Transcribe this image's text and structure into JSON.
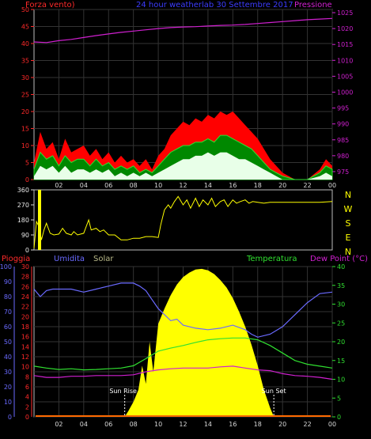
{
  "header": {
    "left_title": "Forza vento)",
    "center_title": "24 hour weatherlab  30 Settembre 2017",
    "right_title": "Pressione"
  },
  "colors": {
    "background": "#000000",
    "frame": "#bcbcbc",
    "grid": "#333333",
    "wind_axis": "#ff2a2a",
    "pressure_axis": "#d020d0",
    "pressure_line": "#d020d0",
    "gust": "#ff0000",
    "avg": "#30e030",
    "min": "#e8ffe8",
    "direction": "#ffff00",
    "compass": "#ffff00",
    "pioggia": "#ff2a2a",
    "umidita": "#6a6aff",
    "solar": "#b8b888",
    "temperatura": "#30e030",
    "dewpoint": "#d020d0",
    "solar_fill": "#ffff00"
  },
  "time_ticks": [
    "02",
    "04",
    "06",
    "08",
    "10",
    "12",
    "14",
    "16",
    "18",
    "20",
    "22",
    "00"
  ],
  "wind_chart": {
    "left_ticks": [
      "0",
      "5",
      "10",
      "15",
      "20",
      "25",
      "30",
      "35",
      "40",
      "45",
      "50"
    ],
    "right_ticks": [
      "975",
      "980",
      "985",
      "990",
      "995",
      "1000",
      "1005",
      "1010",
      "1015",
      "1020",
      "1025"
    ],
    "wind_range": [
      0,
      50
    ],
    "pressure_range": [
      972.5,
      1026
    ],
    "pressure_series": [
      [
        0,
        1015.8
      ],
      [
        1,
        1015.6
      ],
      [
        2,
        1016.2
      ],
      [
        3,
        1016.6
      ],
      [
        4,
        1017.2
      ],
      [
        5,
        1017.8
      ],
      [
        6,
        1018.3
      ],
      [
        7,
        1018.8
      ],
      [
        8,
        1019.2
      ],
      [
        9,
        1019.6
      ],
      [
        10,
        1020.0
      ],
      [
        11,
        1020.3
      ],
      [
        12,
        1020.5
      ],
      [
        13,
        1020.6
      ],
      [
        14,
        1020.8
      ],
      [
        15,
        1021.0
      ],
      [
        16,
        1021.1
      ],
      [
        17,
        1021.3
      ],
      [
        18,
        1021.6
      ],
      [
        19,
        1021.9
      ],
      [
        20,
        1022.2
      ],
      [
        21,
        1022.5
      ],
      [
        22,
        1022.8
      ],
      [
        23,
        1023.0
      ],
      [
        24,
        1023.2
      ]
    ],
    "gust_series": [
      [
        0,
        5
      ],
      [
        0.5,
        14
      ],
      [
        1,
        9
      ],
      [
        1.5,
        11
      ],
      [
        2,
        6
      ],
      [
        2.5,
        12
      ],
      [
        3,
        8
      ],
      [
        3.5,
        9
      ],
      [
        4,
        10
      ],
      [
        4.5,
        7
      ],
      [
        5,
        9
      ],
      [
        5.5,
        6
      ],
      [
        6,
        8
      ],
      [
        6.5,
        5
      ],
      [
        7,
        7
      ],
      [
        7.5,
        5
      ],
      [
        8,
        6
      ],
      [
        8.5,
        4
      ],
      [
        9,
        6
      ],
      [
        9.5,
        3
      ],
      [
        10,
        7
      ],
      [
        10.5,
        9
      ],
      [
        11,
        13
      ],
      [
        11.5,
        15
      ],
      [
        12,
        17
      ],
      [
        12.5,
        16
      ],
      [
        13,
        18
      ],
      [
        13.5,
        17
      ],
      [
        14,
        19
      ],
      [
        14.5,
        18
      ],
      [
        15,
        20
      ],
      [
        15.5,
        19
      ],
      [
        16,
        20
      ],
      [
        16.5,
        18
      ],
      [
        17,
        16
      ],
      [
        17.5,
        14
      ],
      [
        18,
        12
      ],
      [
        18.5,
        9
      ],
      [
        19,
        6
      ],
      [
        19.5,
        4
      ],
      [
        20,
        2
      ],
      [
        21,
        0
      ],
      [
        22,
        0
      ],
      [
        23,
        3
      ],
      [
        23.5,
        6
      ],
      [
        24,
        4
      ]
    ],
    "avg_series": [
      [
        0,
        3
      ],
      [
        0.5,
        8
      ],
      [
        1,
        6
      ],
      [
        1.5,
        7
      ],
      [
        2,
        4
      ],
      [
        2.5,
        7
      ],
      [
        3,
        5
      ],
      [
        3.5,
        6
      ],
      [
        4,
        6
      ],
      [
        4.5,
        4
      ],
      [
        5,
        6
      ],
      [
        5.5,
        4
      ],
      [
        6,
        5
      ],
      [
        6.5,
        3
      ],
      [
        7,
        4
      ],
      [
        7.5,
        3
      ],
      [
        8,
        4
      ],
      [
        8.5,
        2
      ],
      [
        9,
        3
      ],
      [
        9.5,
        2
      ],
      [
        10,
        4
      ],
      [
        10.5,
        6
      ],
      [
        11,
        8
      ],
      [
        11.5,
        9
      ],
      [
        12,
        10
      ],
      [
        12.5,
        10
      ],
      [
        13,
        11
      ],
      [
        13.5,
        11
      ],
      [
        14,
        12
      ],
      [
        14.5,
        11
      ],
      [
        15,
        13
      ],
      [
        15.5,
        13
      ],
      [
        16,
        12
      ],
      [
        16.5,
        11
      ],
      [
        17,
        10
      ],
      [
        17.5,
        9
      ],
      [
        18,
        7
      ],
      [
        18.5,
        5
      ],
      [
        19,
        3
      ],
      [
        19.5,
        2
      ],
      [
        20,
        1
      ],
      [
        21,
        0
      ],
      [
        22,
        0
      ],
      [
        23,
        2
      ],
      [
        23.5,
        4
      ],
      [
        24,
        3
      ]
    ],
    "min_series": [
      [
        0,
        1
      ],
      [
        0.5,
        4
      ],
      [
        1,
        3
      ],
      [
        1.5,
        4
      ],
      [
        2,
        2
      ],
      [
        2.5,
        4
      ],
      [
        3,
        2
      ],
      [
        3.5,
        3
      ],
      [
        4,
        3
      ],
      [
        4.5,
        2
      ],
      [
        5,
        3
      ],
      [
        5.5,
        2
      ],
      [
        6,
        3
      ],
      [
        6.5,
        1
      ],
      [
        7,
        2
      ],
      [
        7.5,
        1
      ],
      [
        8,
        2
      ],
      [
        8.5,
        1
      ],
      [
        9,
        2
      ],
      [
        9.5,
        1
      ],
      [
        10,
        2
      ],
      [
        10.5,
        3
      ],
      [
        11,
        4
      ],
      [
        11.5,
        5
      ],
      [
        12,
        6
      ],
      [
        12.5,
        6
      ],
      [
        13,
        7
      ],
      [
        13.5,
        7
      ],
      [
        14,
        8
      ],
      [
        14.5,
        7
      ],
      [
        15,
        8
      ],
      [
        15.5,
        8
      ],
      [
        16,
        7
      ],
      [
        16.5,
        6
      ],
      [
        17,
        6
      ],
      [
        17.5,
        5
      ],
      [
        18,
        4
      ],
      [
        18.5,
        3
      ],
      [
        19,
        2
      ],
      [
        19.5,
        1
      ],
      [
        20,
        0
      ],
      [
        21,
        0
      ],
      [
        22,
        0
      ],
      [
        23,
        1
      ],
      [
        23.5,
        2
      ],
      [
        24,
        1
      ]
    ]
  },
  "direction_chart": {
    "left_ticks": [
      "0",
      "90",
      "180",
      "270",
      "360"
    ],
    "compass": [
      "N",
      "W",
      "S",
      "E",
      "N"
    ],
    "range": [
      0,
      360
    ],
    "series": [
      [
        0,
        10
      ],
      [
        0.2,
        170
      ],
      [
        0.4,
        140
      ],
      [
        0.6,
        60
      ],
      [
        0.8,
        120
      ],
      [
        1,
        160
      ],
      [
        1.3,
        100
      ],
      [
        1.6,
        90
      ],
      [
        2,
        95
      ],
      [
        2.3,
        130
      ],
      [
        2.6,
        100
      ],
      [
        3,
        90
      ],
      [
        3.2,
        110
      ],
      [
        3.5,
        90
      ],
      [
        4,
        100
      ],
      [
        4.4,
        180
      ],
      [
        4.6,
        120
      ],
      [
        5,
        130
      ],
      [
        5.3,
        110
      ],
      [
        5.6,
        120
      ],
      [
        6,
        90
      ],
      [
        6.5,
        90
      ],
      [
        7,
        60
      ],
      [
        7.5,
        60
      ],
      [
        8,
        70
      ],
      [
        8.5,
        70
      ],
      [
        9,
        80
      ],
      [
        9.5,
        80
      ],
      [
        10,
        75
      ],
      [
        10.2,
        150
      ],
      [
        10.5,
        240
      ],
      [
        10.8,
        270
      ],
      [
        11,
        250
      ],
      [
        11.3,
        290
      ],
      [
        11.6,
        320
      ],
      [
        12,
        270
      ],
      [
        12.3,
        300
      ],
      [
        12.6,
        250
      ],
      [
        13,
        310
      ],
      [
        13.3,
        260
      ],
      [
        13.6,
        300
      ],
      [
        14,
        270
      ],
      [
        14.3,
        310
      ],
      [
        14.6,
        260
      ],
      [
        15,
        290
      ],
      [
        15.3,
        300
      ],
      [
        15.6,
        260
      ],
      [
        16,
        300
      ],
      [
        16.3,
        280
      ],
      [
        16.6,
        290
      ],
      [
        17,
        300
      ],
      [
        17.3,
        280
      ],
      [
        17.6,
        290
      ],
      [
        18,
        285
      ],
      [
        18.5,
        280
      ],
      [
        19,
        285
      ],
      [
        20,
        285
      ],
      [
        21,
        285
      ],
      [
        22,
        285
      ],
      [
        23,
        285
      ],
      [
        24,
        290
      ]
    ]
  },
  "weather_chart": {
    "legend": {
      "pioggia": "Pioggia",
      "umidita": "Umidita",
      "solar": "Solar",
      "temperatura": "Temperatura",
      "dewpoint": "Dew Point (°C)"
    },
    "humidity_ticks": [
      "0",
      "10",
      "20",
      "30",
      "40",
      "50",
      "60",
      "70",
      "80",
      "90",
      "100"
    ],
    "rain_ticks": [
      "0",
      "2",
      "4",
      "6",
      "8",
      "10",
      "12",
      "14",
      "16",
      "18",
      "20",
      "22",
      "24",
      "26",
      "28",
      "30"
    ],
    "temp_ticks": [
      "0",
      "5",
      "10",
      "15",
      "20",
      "25",
      "30",
      "35",
      "40"
    ],
    "humidity_range": [
      0,
      100
    ],
    "temp_range": [
      0,
      40
    ],
    "solar_range": [
      0,
      1000
    ],
    "sunrise_label": "Sun Rise",
    "sunset_label": "Sun Set",
    "sunrise_hour": 7.3,
    "sunset_hour": 19.3,
    "humidity_series": [
      [
        0,
        85
      ],
      [
        0.5,
        80
      ],
      [
        1,
        84
      ],
      [
        1.5,
        85
      ],
      [
        2,
        85
      ],
      [
        3,
        85
      ],
      [
        4,
        83
      ],
      [
        5,
        85
      ],
      [
        6,
        87
      ],
      [
        7,
        89
      ],
      [
        8,
        89
      ],
      [
        8.5,
        87
      ],
      [
        9,
        84
      ],
      [
        9.5,
        78
      ],
      [
        10,
        72
      ],
      [
        10.5,
        68
      ],
      [
        11,
        64
      ],
      [
        11.5,
        65
      ],
      [
        12,
        61
      ],
      [
        13,
        59
      ],
      [
        14,
        58
      ],
      [
        15,
        59
      ],
      [
        16,
        61
      ],
      [
        17,
        58
      ],
      [
        17.5,
        55
      ],
      [
        18,
        53
      ],
      [
        19,
        55
      ],
      [
        20,
        60
      ],
      [
        21,
        68
      ],
      [
        22,
        76
      ],
      [
        23,
        82
      ],
      [
        24,
        83
      ]
    ],
    "temperature_series": [
      [
        0,
        13.5
      ],
      [
        1,
        13.0
      ],
      [
        2,
        12.6
      ],
      [
        3,
        12.8
      ],
      [
        4,
        12.5
      ],
      [
        5,
        12.6
      ],
      [
        6,
        12.8
      ],
      [
        7,
        13.0
      ],
      [
        8,
        13.6
      ],
      [
        9,
        15.5
      ],
      [
        10,
        17.5
      ],
      [
        11,
        18.3
      ],
      [
        12,
        19.0
      ],
      [
        13,
        19.8
      ],
      [
        14,
        20.5
      ],
      [
        15,
        20.8
      ],
      [
        16,
        21.0
      ],
      [
        17,
        21.0
      ],
      [
        18,
        20.5
      ],
      [
        19,
        19.0
      ],
      [
        20,
        17.0
      ],
      [
        21,
        15.0
      ],
      [
        22,
        14.0
      ],
      [
        23,
        13.5
      ],
      [
        24,
        13.0
      ]
    ],
    "dewpoint_series": [
      [
        0,
        11.0
      ],
      [
        1,
        10.5
      ],
      [
        2,
        10.5
      ],
      [
        3,
        10.8
      ],
      [
        4,
        10.8
      ],
      [
        5,
        11.0
      ],
      [
        6,
        11.0
      ],
      [
        7,
        11.0
      ],
      [
        8,
        11.2
      ],
      [
        9,
        12.0
      ],
      [
        10,
        12.5
      ],
      [
        11,
        12.8
      ],
      [
        12,
        13.0
      ],
      [
        13,
        13.0
      ],
      [
        14,
        13.0
      ],
      [
        15,
        13.3
      ],
      [
        16,
        13.5
      ],
      [
        17,
        13.0
      ],
      [
        18,
        12.5
      ],
      [
        19,
        12.3
      ],
      [
        20,
        11.5
      ],
      [
        21,
        11.0
      ],
      [
        22,
        10.8
      ],
      [
        23,
        10.5
      ],
      [
        24,
        10.0
      ]
    ],
    "solar_series": [
      [
        7.3,
        0
      ],
      [
        7.6,
        40
      ],
      [
        8,
        100
      ],
      [
        8.4,
        180
      ],
      [
        8.7,
        340
      ],
      [
        9,
        220
      ],
      [
        9.3,
        500
      ],
      [
        9.6,
        300
      ],
      [
        10,
        620
      ],
      [
        10.5,
        720
      ],
      [
        11,
        810
      ],
      [
        11.5,
        880
      ],
      [
        12,
        930
      ],
      [
        12.5,
        960
      ],
      [
        13,
        980
      ],
      [
        13.5,
        985
      ],
      [
        14,
        975
      ],
      [
        14.5,
        950
      ],
      [
        15,
        910
      ],
      [
        15.5,
        860
      ],
      [
        16,
        790
      ],
      [
        16.5,
        700
      ],
      [
        17,
        600
      ],
      [
        17.5,
        480
      ],
      [
        18,
        340
      ],
      [
        18.5,
        180
      ],
      [
        19,
        60
      ],
      [
        19.3,
        0
      ]
    ]
  }
}
